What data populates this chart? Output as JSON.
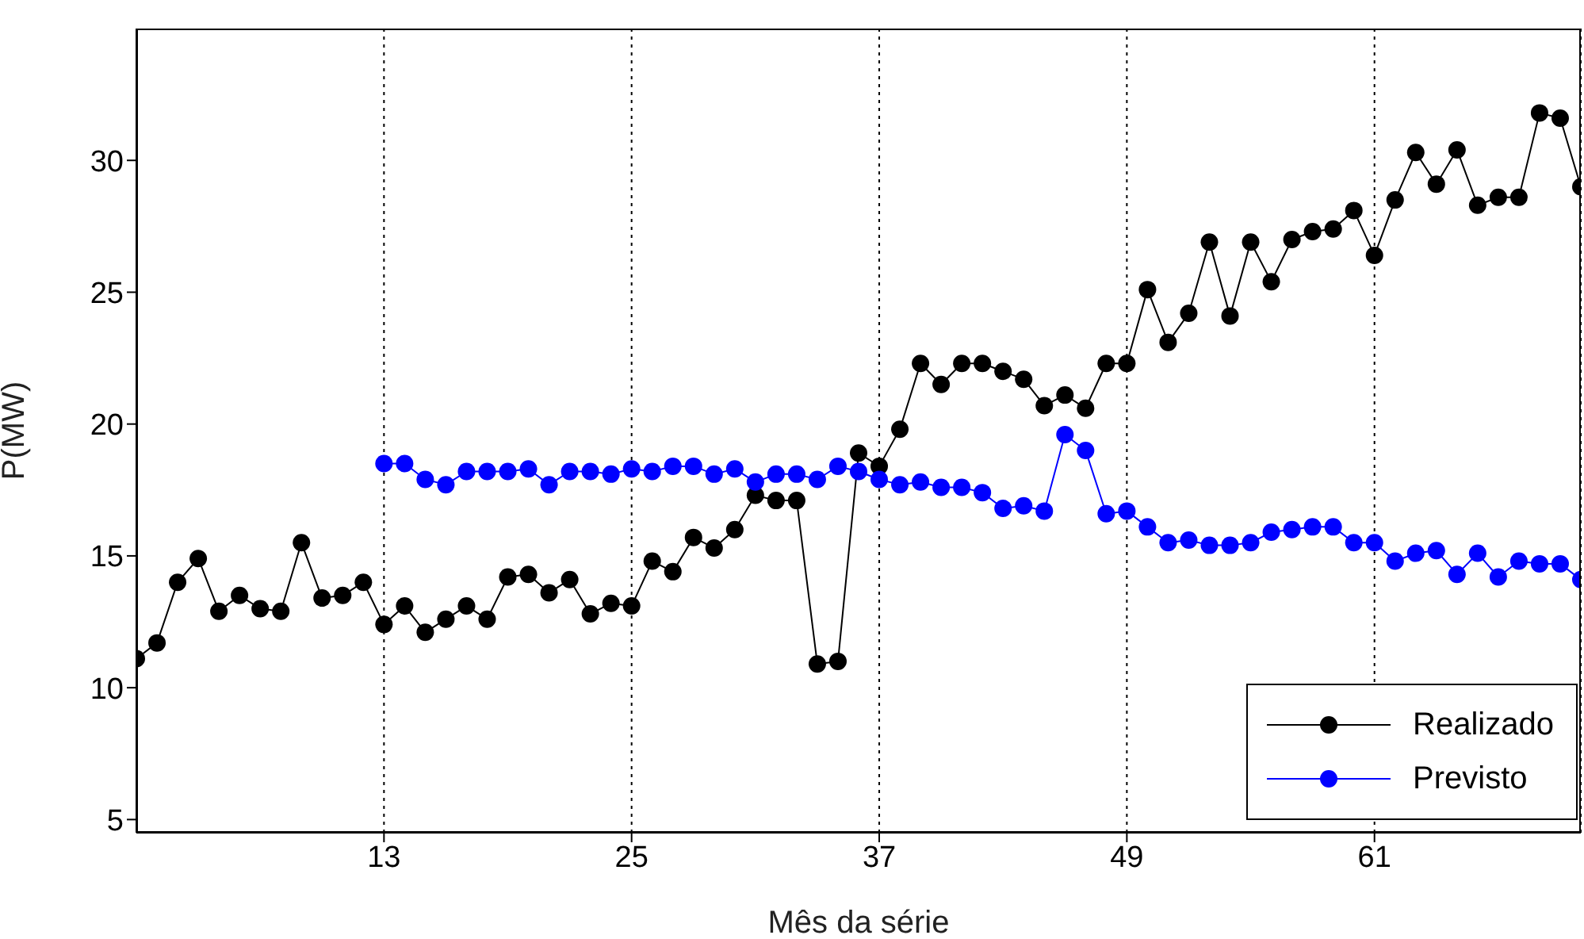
{
  "chart_data": {
    "type": "line",
    "xlabel": "Mês da série",
    "ylabel": "P(MW)",
    "x": [
      1,
      2,
      3,
      4,
      5,
      6,
      7,
      8,
      9,
      10,
      11,
      12,
      13,
      14,
      15,
      16,
      17,
      18,
      19,
      20,
      21,
      22,
      23,
      24,
      25,
      26,
      27,
      28,
      29,
      30,
      31,
      32,
      33,
      34,
      35,
      36,
      37,
      38,
      39,
      40,
      41,
      42,
      43,
      44,
      45,
      46,
      47,
      48,
      49,
      50,
      51,
      52,
      53,
      54,
      55,
      56,
      57,
      58,
      59,
      60,
      61,
      62,
      63,
      64,
      65,
      66,
      67,
      68,
      69,
      70,
      71
    ],
    "series": [
      {
        "name": "Realizado",
        "color": "#000000",
        "values": [
          11.1,
          11.7,
          14.0,
          14.9,
          12.9,
          13.5,
          13.0,
          12.9,
          15.5,
          13.4,
          13.5,
          14.0,
          12.4,
          13.1,
          12.1,
          12.6,
          13.1,
          12.6,
          14.2,
          14.3,
          13.6,
          14.1,
          12.8,
          13.2,
          13.1,
          14.8,
          14.4,
          15.7,
          15.3,
          16.0,
          17.3,
          17.1,
          17.1,
          10.9,
          11.0,
          18.9,
          18.4,
          19.8,
          22.3,
          21.5,
          22.3,
          22.3,
          22.0,
          21.7,
          20.7,
          21.1,
          20.6,
          22.3,
          22.3,
          25.1,
          23.1,
          24.2,
          26.9,
          24.1,
          26.9,
          25.4,
          27.0,
          27.3,
          27.4,
          28.1,
          26.4,
          28.5,
          30.3,
          29.1,
          30.4,
          28.3,
          28.6,
          28.6,
          31.8,
          31.6,
          29.0
        ]
      },
      {
        "name": "Previsto",
        "color": "#0000ff",
        "values": [
          null,
          null,
          null,
          null,
          null,
          null,
          null,
          null,
          null,
          null,
          null,
          null,
          18.5,
          18.5,
          17.9,
          17.7,
          18.2,
          18.2,
          18.2,
          18.3,
          17.7,
          18.2,
          18.2,
          18.1,
          18.3,
          18.2,
          18.4,
          18.4,
          18.1,
          18.3,
          17.8,
          18.1,
          18.1,
          17.9,
          18.4,
          18.2,
          17.9,
          17.7,
          17.8,
          17.6,
          17.6,
          17.4,
          16.8,
          16.9,
          16.7,
          19.6,
          19.0,
          16.6,
          16.7,
          16.1,
          15.5,
          15.6,
          15.4,
          15.4,
          15.5,
          15.9,
          16.0,
          16.1,
          16.1,
          15.5,
          15.5,
          14.8,
          15.1,
          15.2,
          14.3,
          15.1,
          14.2,
          14.8,
          14.7,
          14.7,
          14.1
        ]
      }
    ],
    "xlim": [
      1,
      71
    ],
    "xticks": [
      13,
      25,
      37,
      49,
      61
    ],
    "ylim": [
      4.5,
      35
    ],
    "yticks": [
      5,
      10,
      15,
      20,
      25,
      30
    ],
    "grid": "x",
    "legend": "bottom right",
    "marker": "circle",
    "line_style": "solid"
  }
}
